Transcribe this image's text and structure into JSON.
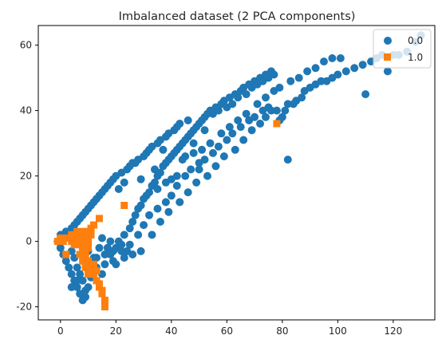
{
  "chart_data": {
    "type": "scatter",
    "title": "Imbalanced dataset (2 PCA components)",
    "xlabel": "",
    "ylabel": "",
    "xlim": [
      -8,
      135
    ],
    "ylim": [
      -24,
      66
    ],
    "x_ticks": [
      0,
      20,
      40,
      60,
      80,
      100,
      120
    ],
    "y_ticks": [
      -20,
      0,
      20,
      40,
      60
    ],
    "grid": false,
    "legend_position": "top-right",
    "series": [
      {
        "name": "0.0",
        "marker": "circle",
        "color": "#1f77b4",
        "points": [
          [
            -1,
            0
          ],
          [
            0,
            -2
          ],
          [
            0,
            2
          ],
          [
            1,
            -4
          ],
          [
            1,
            1
          ],
          [
            2,
            -6
          ],
          [
            2,
            3
          ],
          [
            3,
            -8
          ],
          [
            3,
            2
          ],
          [
            4,
            -10
          ],
          [
            4,
            -3
          ],
          [
            4,
            4
          ],
          [
            5,
            -12
          ],
          [
            5,
            -5
          ],
          [
            5,
            5
          ],
          [
            6,
            -14
          ],
          [
            6,
            -8
          ],
          [
            6,
            6
          ],
          [
            7,
            -16
          ],
          [
            7,
            -10
          ],
          [
            7,
            7
          ],
          [
            8,
            -18
          ],
          [
            8,
            -12
          ],
          [
            8,
            -4
          ],
          [
            8,
            8
          ],
          [
            9,
            -17
          ],
          [
            9,
            -6
          ],
          [
            9,
            9
          ],
          [
            10,
            -14
          ],
          [
            10,
            -3
          ],
          [
            10,
            10
          ],
          [
            11,
            -11
          ],
          [
            11,
            11
          ],
          [
            12,
            -8
          ],
          [
            12,
            12
          ],
          [
            13,
            -5
          ],
          [
            13,
            13
          ],
          [
            14,
            -2
          ],
          [
            14,
            14
          ],
          [
            15,
            1
          ],
          [
            15,
            15
          ],
          [
            16,
            -4
          ],
          [
            16,
            16
          ],
          [
            17,
            -2
          ],
          [
            17,
            17
          ],
          [
            18,
            0
          ],
          [
            18,
            18
          ],
          [
            19,
            -3
          ],
          [
            19,
            19
          ],
          [
            20,
            -2
          ],
          [
            20,
            20
          ],
          [
            21,
            0
          ],
          [
            21,
            16
          ],
          [
            22,
            -1
          ],
          [
            22,
            21
          ],
          [
            23,
            2
          ],
          [
            23,
            18
          ],
          [
            24,
            -3
          ],
          [
            24,
            22
          ],
          [
            25,
            4
          ],
          [
            25,
            23
          ],
          [
            26,
            6
          ],
          [
            26,
            24
          ],
          [
            27,
            8
          ],
          [
            27,
            24
          ],
          [
            28,
            10
          ],
          [
            28,
            25
          ],
          [
            29,
            11
          ],
          [
            29,
            19
          ],
          [
            30,
            13
          ],
          [
            30,
            26
          ],
          [
            31,
            14
          ],
          [
            31,
            27
          ],
          [
            32,
            15
          ],
          [
            32,
            28
          ],
          [
            33,
            17
          ],
          [
            33,
            29
          ],
          [
            34,
            18
          ],
          [
            34,
            22
          ],
          [
            35,
            20
          ],
          [
            35,
            30
          ],
          [
            36,
            21
          ],
          [
            36,
            31
          ],
          [
            37,
            23
          ],
          [
            37,
            28
          ],
          [
            38,
            24
          ],
          [
            38,
            32
          ],
          [
            39,
            25
          ],
          [
            39,
            33
          ],
          [
            40,
            26
          ],
          [
            40,
            19
          ],
          [
            41,
            27
          ],
          [
            41,
            34
          ],
          [
            42,
            28
          ],
          [
            42,
            35
          ],
          [
            43,
            29
          ],
          [
            43,
            36
          ],
          [
            44,
            30
          ],
          [
            45,
            31
          ],
          [
            45,
            26
          ],
          [
            46,
            32
          ],
          [
            46,
            37
          ],
          [
            47,
            33
          ],
          [
            48,
            34
          ],
          [
            48,
            30
          ],
          [
            49,
            35
          ],
          [
            50,
            36
          ],
          [
            50,
            22
          ],
          [
            51,
            37
          ],
          [
            52,
            38
          ],
          [
            52,
            34
          ],
          [
            53,
            39
          ],
          [
            54,
            40
          ],
          [
            55,
            39
          ],
          [
            56,
            41
          ],
          [
            57,
            40
          ],
          [
            58,
            42
          ],
          [
            59,
            43
          ],
          [
            60,
            41
          ],
          [
            61,
            44
          ],
          [
            62,
            42
          ],
          [
            63,
            45
          ],
          [
            64,
            44
          ],
          [
            65,
            46
          ],
          [
            66,
            47
          ],
          [
            67,
            45
          ],
          [
            68,
            48
          ],
          [
            69,
            47
          ],
          [
            70,
            49
          ],
          [
            71,
            48
          ],
          [
            72,
            50
          ],
          [
            73,
            49
          ],
          [
            74,
            51
          ],
          [
            75,
            50
          ],
          [
            76,
            52
          ],
          [
            77,
            51
          ],
          [
            78,
            40
          ],
          [
            79,
            37
          ],
          [
            80,
            38
          ],
          [
            81,
            40
          ],
          [
            82,
            42
          ],
          [
            82,
            25
          ],
          [
            84,
            42
          ],
          [
            85,
            43
          ],
          [
            87,
            44
          ],
          [
            88,
            46
          ],
          [
            90,
            47
          ],
          [
            92,
            48
          ],
          [
            94,
            49
          ],
          [
            96,
            49
          ],
          [
            98,
            50
          ],
          [
            100,
            51
          ],
          [
            103,
            52
          ],
          [
            106,
            53
          ],
          [
            109,
            54
          ],
          [
            110,
            45
          ],
          [
            112,
            55
          ],
          [
            114,
            56
          ],
          [
            116,
            57
          ],
          [
            118,
            52
          ],
          [
            120,
            57
          ],
          [
            122,
            57
          ],
          [
            125,
            58
          ],
          [
            128,
            61
          ],
          [
            130,
            63
          ],
          [
            8,
            -2
          ],
          [
            12,
            -5
          ],
          [
            15,
            -10
          ],
          [
            18,
            -4
          ],
          [
            20,
            -7
          ],
          [
            22,
            -3
          ],
          [
            25,
            -1
          ],
          [
            28,
            2
          ],
          [
            30,
            5
          ],
          [
            32,
            8
          ],
          [
            35,
            10
          ],
          [
            38,
            12
          ],
          [
            40,
            14
          ],
          [
            42,
            17
          ],
          [
            45,
            20
          ],
          [
            47,
            22
          ],
          [
            50,
            24
          ],
          [
            52,
            25
          ],
          [
            55,
            27
          ],
          [
            57,
            29
          ],
          [
            60,
            31
          ],
          [
            62,
            33
          ],
          [
            65,
            35
          ],
          [
            68,
            37
          ],
          [
            70,
            38
          ],
          [
            73,
            40
          ],
          [
            75,
            41
          ],
          [
            4,
            -14
          ],
          [
            6,
            -12
          ],
          [
            9,
            -15
          ],
          [
            13,
            -8
          ],
          [
            16,
            -7
          ],
          [
            19,
            -6
          ],
          [
            23,
            -5
          ],
          [
            26,
            -4
          ],
          [
            29,
            -3
          ],
          [
            33,
            2
          ],
          [
            36,
            6
          ],
          [
            39,
            9
          ],
          [
            43,
            12
          ],
          [
            46,
            15
          ],
          [
            49,
            18
          ],
          [
            53,
            20
          ],
          [
            56,
            23
          ],
          [
            59,
            26
          ],
          [
            63,
            28
          ],
          [
            66,
            31
          ],
          [
            69,
            34
          ],
          [
            72,
            36
          ],
          [
            74,
            38
          ],
          [
            76,
            40
          ],
          [
            35,
            16
          ],
          [
            38,
            18
          ],
          [
            42,
            20
          ],
          [
            44,
            25
          ],
          [
            48,
            27
          ],
          [
            51,
            28
          ],
          [
            54,
            30
          ],
          [
            58,
            33
          ],
          [
            61,
            35
          ],
          [
            64,
            37
          ],
          [
            67,
            39
          ],
          [
            71,
            42
          ],
          [
            74,
            44
          ],
          [
            77,
            46
          ],
          [
            79,
            47
          ],
          [
            83,
            49
          ],
          [
            86,
            50
          ],
          [
            89,
            52
          ],
          [
            92,
            53
          ],
          [
            95,
            55
          ],
          [
            98,
            56
          ],
          [
            101,
            56
          ]
        ]
      },
      {
        "name": "1.0",
        "marker": "square",
        "color": "#ff7f0e",
        "points": [
          [
            -1,
            0
          ],
          [
            0,
            1
          ],
          [
            1,
            0
          ],
          [
            2,
            1
          ],
          [
            3,
            1
          ],
          [
            4,
            2
          ],
          [
            5,
            2
          ],
          [
            6,
            1
          ],
          [
            7,
            2
          ],
          [
            8,
            3
          ],
          [
            9,
            3
          ],
          [
            10,
            3
          ],
          [
            11,
            4
          ],
          [
            12,
            5
          ],
          [
            6,
            -1
          ],
          [
            8,
            0
          ],
          [
            8,
            -2
          ],
          [
            9,
            -4
          ],
          [
            10,
            -6
          ],
          [
            11,
            -8
          ],
          [
            12,
            -10
          ],
          [
            13,
            -12
          ],
          [
            14,
            -14
          ],
          [
            15,
            -16
          ],
          [
            16,
            -18
          ],
          [
            16,
            -20
          ],
          [
            7,
            -4
          ],
          [
            8,
            -6
          ],
          [
            9,
            -8
          ],
          [
            10,
            -10
          ],
          [
            9,
            1
          ],
          [
            10,
            0
          ],
          [
            11,
            2
          ],
          [
            2,
            -4
          ],
          [
            14,
            7
          ],
          [
            23,
            11
          ],
          [
            78,
            36
          ],
          [
            4,
            0
          ],
          [
            5,
            -1
          ],
          [
            6,
            3
          ],
          [
            10,
            -2
          ],
          [
            12,
            -7
          ],
          [
            13,
            -9
          ],
          [
            14,
            -13
          ],
          [
            15,
            -15
          ]
        ]
      }
    ]
  }
}
